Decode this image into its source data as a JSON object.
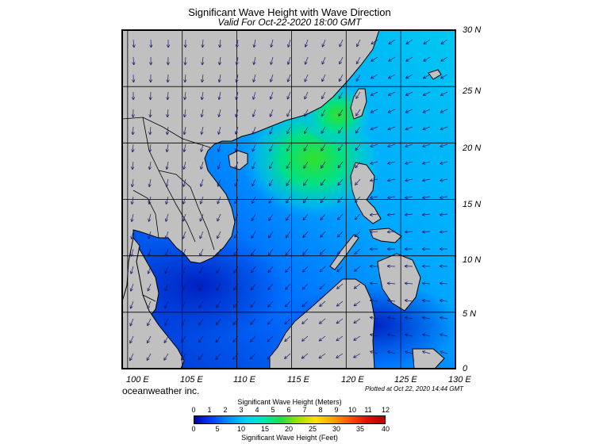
{
  "header": {
    "title": "Significant Wave Height with Wave Direction",
    "subtitle": "Valid For Oct-22-2020 18:00 GMT"
  },
  "map": {
    "lon_labels": [
      "100 E",
      "105 E",
      "110 E",
      "115 E",
      "120 E",
      "125 E",
      "130 E"
    ],
    "lat_labels": [
      "30 N",
      "25 N",
      "20 N",
      "15 N",
      "10 N",
      "5 N",
      "0"
    ],
    "lon_range": [
      99.5,
      130
    ],
    "lat_range": [
      0,
      30
    ],
    "colors": {
      "land": "#c0c0c0",
      "low_wave": "#0033cc",
      "mid_wave": "#00a8ff",
      "high_wave": "#22dd44",
      "arrow": "#1a1a6e"
    }
  },
  "footer": {
    "credit": "oceanweather inc.",
    "plotted": "Plotted at Oct 22, 2020 14:44 GMT"
  },
  "legend": {
    "meters_title": "Significant Wave Height (Meters)",
    "feet_title": "Significant Wave Height (Feet)",
    "meters_ticks": [
      "0",
      "1",
      "2",
      "3",
      "4",
      "5",
      "6",
      "7",
      "8",
      "9",
      "10",
      "11",
      "12"
    ],
    "feet_ticks": [
      "0",
      "5",
      "10",
      "15",
      "20",
      "25",
      "30",
      "35",
      "40"
    ]
  }
}
